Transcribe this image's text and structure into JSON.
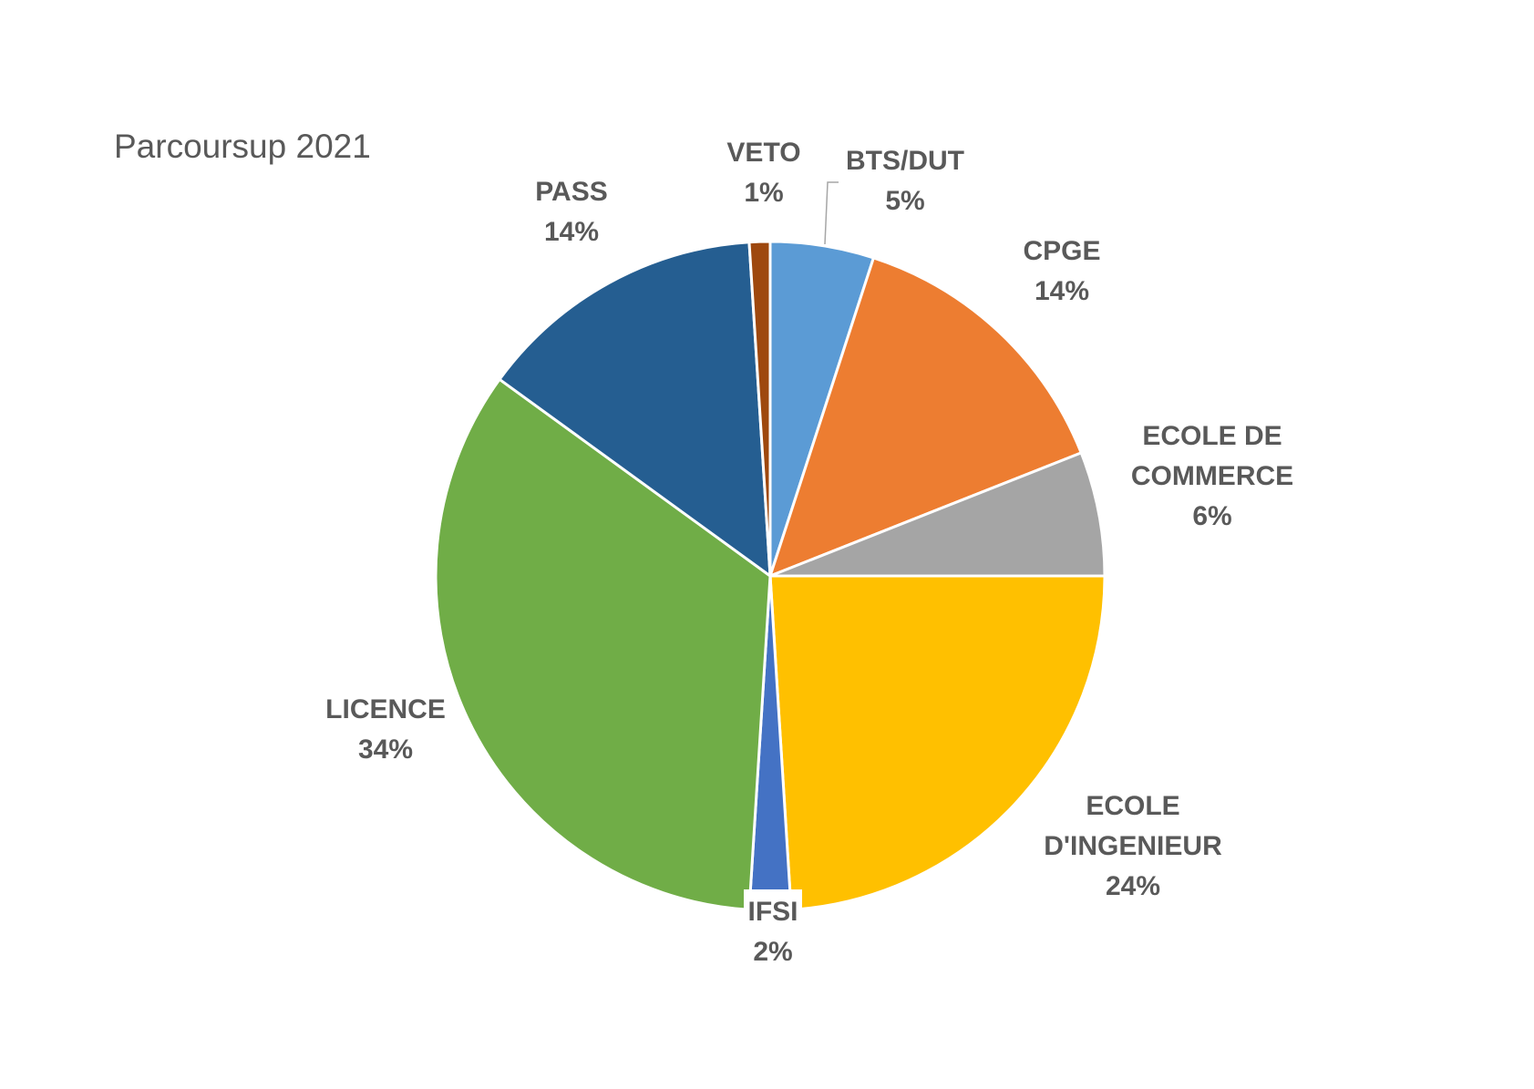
{
  "chart_data": {
    "type": "pie",
    "title": "Parcoursup 2021",
    "categories": [
      "BTS/DUT",
      "CPGE",
      "ECOLE DE COMMERCE",
      "ECOLE D'INGENIEUR",
      "IFSI",
      "LICENCE",
      "PASS",
      "VETO"
    ],
    "values": [
      5,
      14,
      6,
      24,
      2,
      34,
      14,
      1
    ],
    "value_labels": [
      "5%",
      "14%",
      "6%",
      "24%",
      "2%",
      "34%",
      "14%",
      "1%"
    ],
    "colors": [
      "#5B9BD5",
      "#ED7D31",
      "#A5A5A5",
      "#FFC000",
      "#4472C4",
      "#70AD47",
      "#255E91",
      "#9E480E"
    ],
    "legend": "none",
    "start_angle": "top",
    "direction": "clockwise"
  }
}
